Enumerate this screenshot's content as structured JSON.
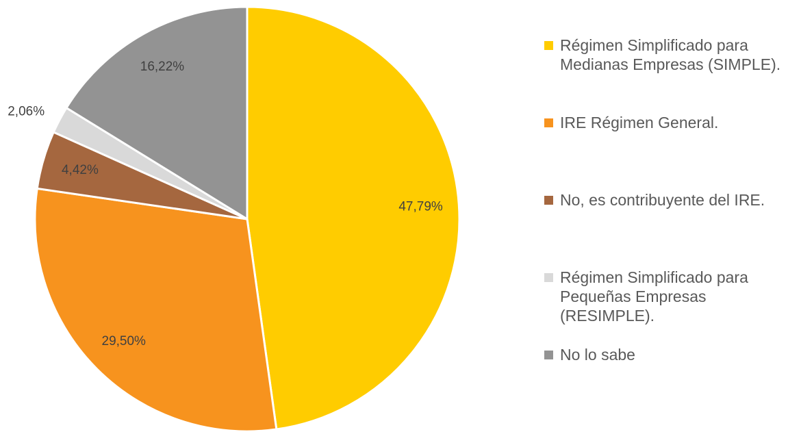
{
  "chart_data": {
    "type": "pie",
    "categories": [
      "Régimen Simplificado para Medianas Empresas (SIMPLE).",
      "IRE Régimen General.",
      "No, es contribuyente del IRE.",
      "Régimen Simplificado para Pequeñas Empresas (RESIMPLE).",
      "No lo sabe"
    ],
    "values": [
      47.79,
      29.5,
      4.42,
      2.06,
      16.22
    ],
    "value_labels": [
      "47,79%",
      "29,50%",
      "4,42%",
      "2,06%",
      "16,22%"
    ],
    "colors": [
      "#FFCC00",
      "#F7931E",
      "#A5673F",
      "#D9D9D9",
      "#939393"
    ],
    "legend": "right"
  }
}
